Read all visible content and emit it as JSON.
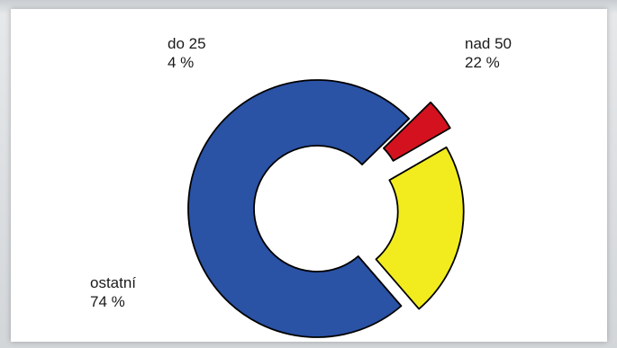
{
  "chart_data": {
    "type": "pie",
    "variant": "donut",
    "slices": [
      {
        "label": "nad 50",
        "value": 22,
        "value_text": "22 %",
        "color": "#f2ec1e"
      },
      {
        "label": "ostatní",
        "value": 74,
        "value_text": "74 %",
        "color": "#2a52a5"
      },
      {
        "label": "do 25",
        "value": 4,
        "value_text": "4 %",
        "color": "#d4121f"
      }
    ],
    "title": "",
    "legend": "none"
  }
}
